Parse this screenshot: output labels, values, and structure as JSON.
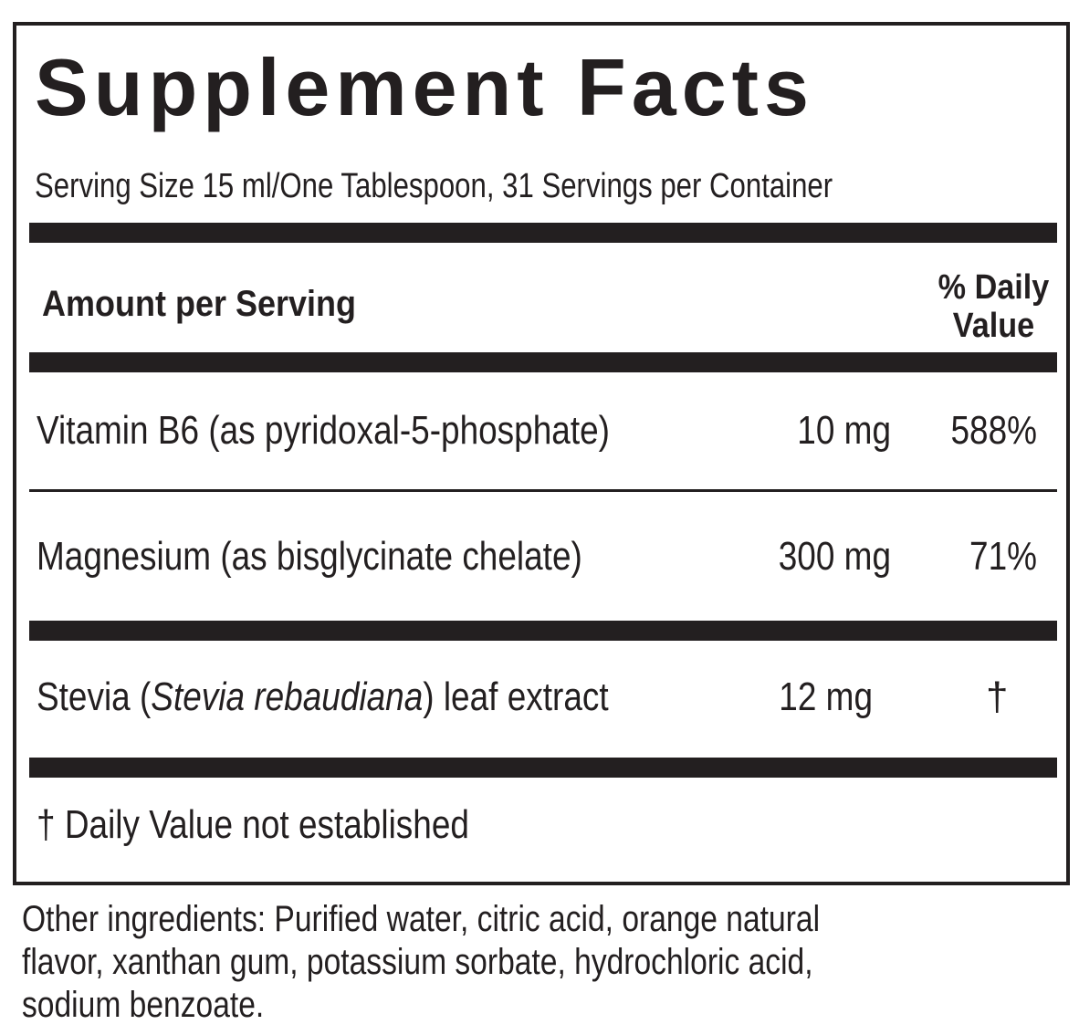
{
  "title": "Supplement Facts",
  "serving_line": "Serving Size 15 ml/One Tablespoon, 31 Servings per Container",
  "header": {
    "amount_label": "Amount per Serving",
    "dv_line1": "% Daily",
    "dv_line2": "Value"
  },
  "rows": [
    {
      "name": "Vitamin B6 (as pyridoxal-5-phosphate)",
      "amount": "10 mg",
      "dv": "588%"
    },
    {
      "name": "Magnesium (as bisglycinate chelate)",
      "amount": "300 mg",
      "dv": "71%"
    },
    {
      "name_prefix": "Stevia (",
      "name_italic": "Stevia rebaudiana",
      "name_suffix": ") leaf extract",
      "amount": "12 mg",
      "dv": "†"
    }
  ],
  "footnote": "† Daily Value not established",
  "other_ingredients": {
    "line1": "Other ingredients: Purified water, citric acid, orange natural",
    "line2": "flavor, xanthan gum, potassium sorbate, hydrochloric acid,",
    "line3": "sodium benzoate."
  }
}
